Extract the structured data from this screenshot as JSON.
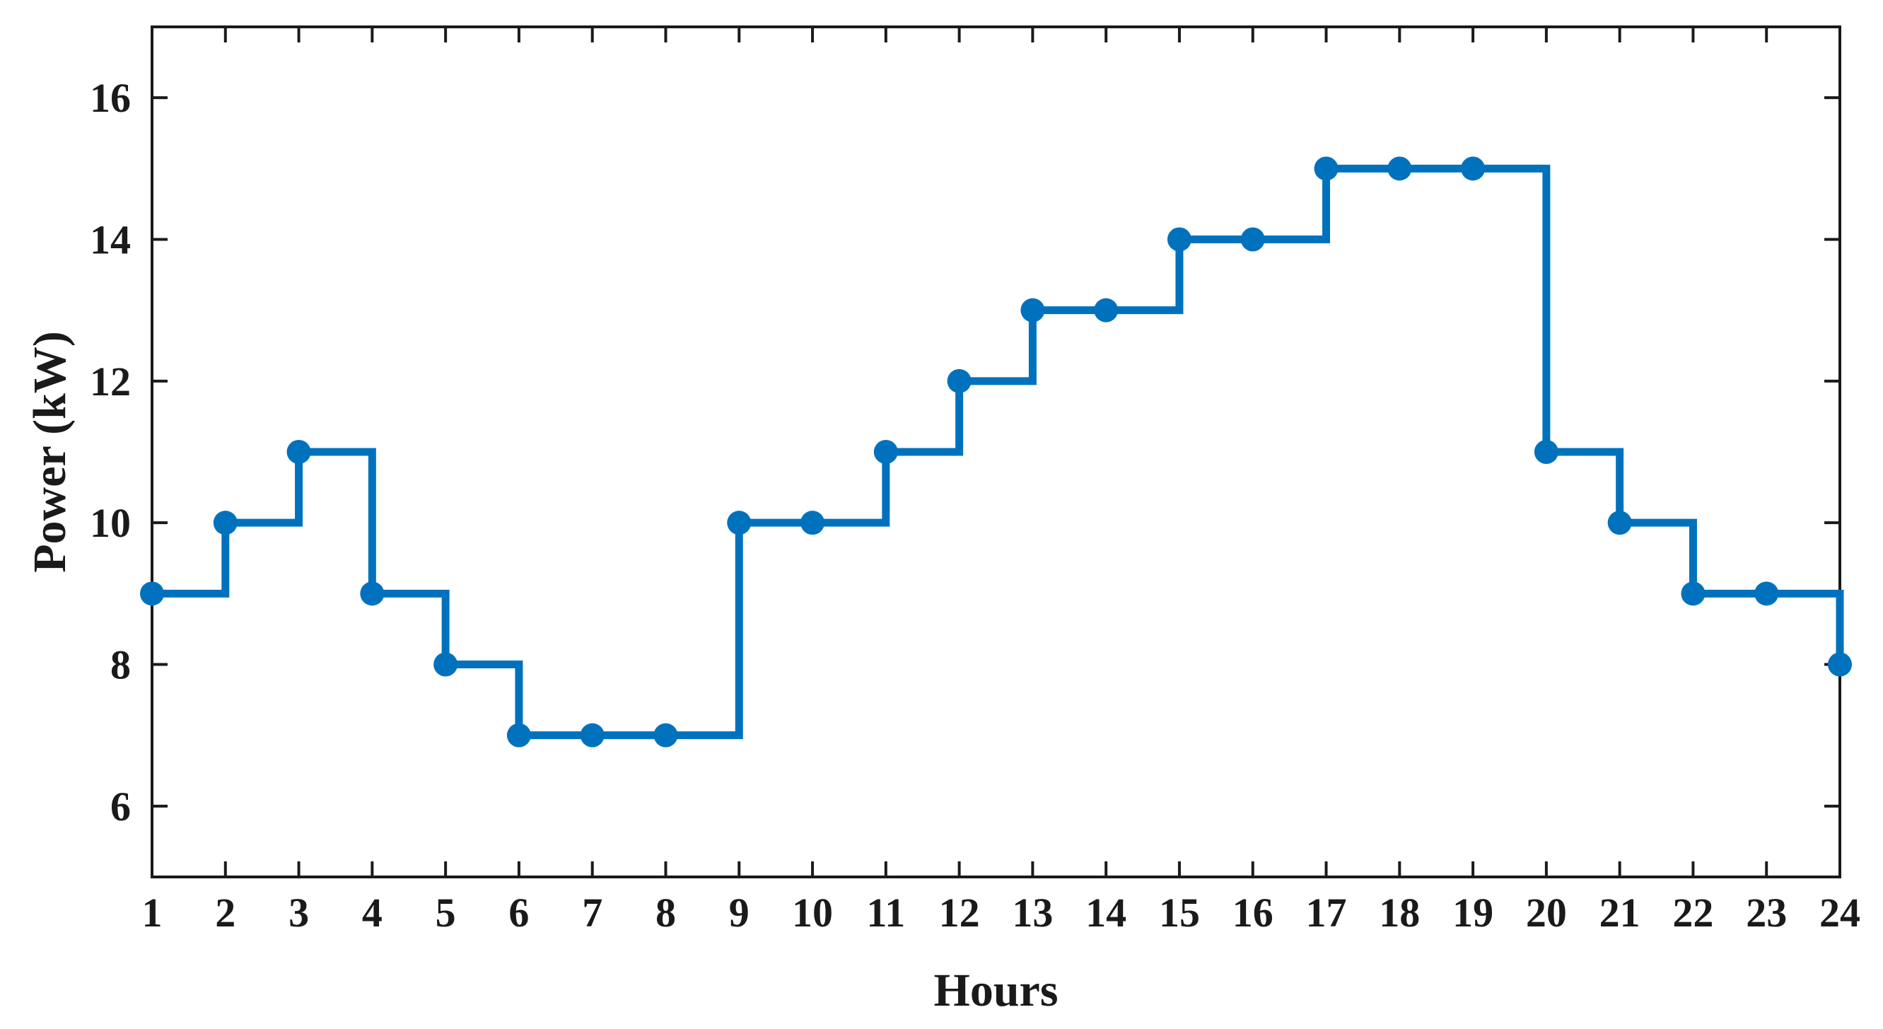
{
  "chart_data": {
    "type": "line",
    "style": "step-post with markers",
    "title": "",
    "xlabel": "Hours",
    "ylabel": "Power (kW)",
    "x": [
      1,
      2,
      3,
      4,
      5,
      6,
      7,
      8,
      9,
      10,
      11,
      12,
      13,
      14,
      15,
      16,
      17,
      18,
      19,
      20,
      21,
      22,
      23,
      24
    ],
    "series": [
      {
        "values": [
          9,
          10,
          11,
          9,
          8,
          7,
          7,
          7,
          10,
          10,
          11,
          12,
          13,
          13,
          14,
          14,
          15,
          15,
          15,
          11,
          10,
          9,
          9,
          8
        ],
        "color": "#0072BD"
      }
    ],
    "xlim": [
      1,
      24
    ],
    "ylim": [
      5,
      17
    ],
    "xticks": [
      "1",
      "2",
      "3",
      "4",
      "5",
      "6",
      "7",
      "8",
      "9",
      "10",
      "11",
      "12",
      "13",
      "14",
      "15",
      "16",
      "17",
      "18",
      "19",
      "20",
      "21",
      "22",
      "23",
      "24"
    ],
    "yticks": [
      "6",
      "8",
      "10",
      "12",
      "14",
      "16"
    ],
    "ytick_values": [
      6,
      8,
      10,
      12,
      14,
      16
    ],
    "grid": false,
    "legend": "none",
    "axis_color": "#1a1a1a"
  }
}
